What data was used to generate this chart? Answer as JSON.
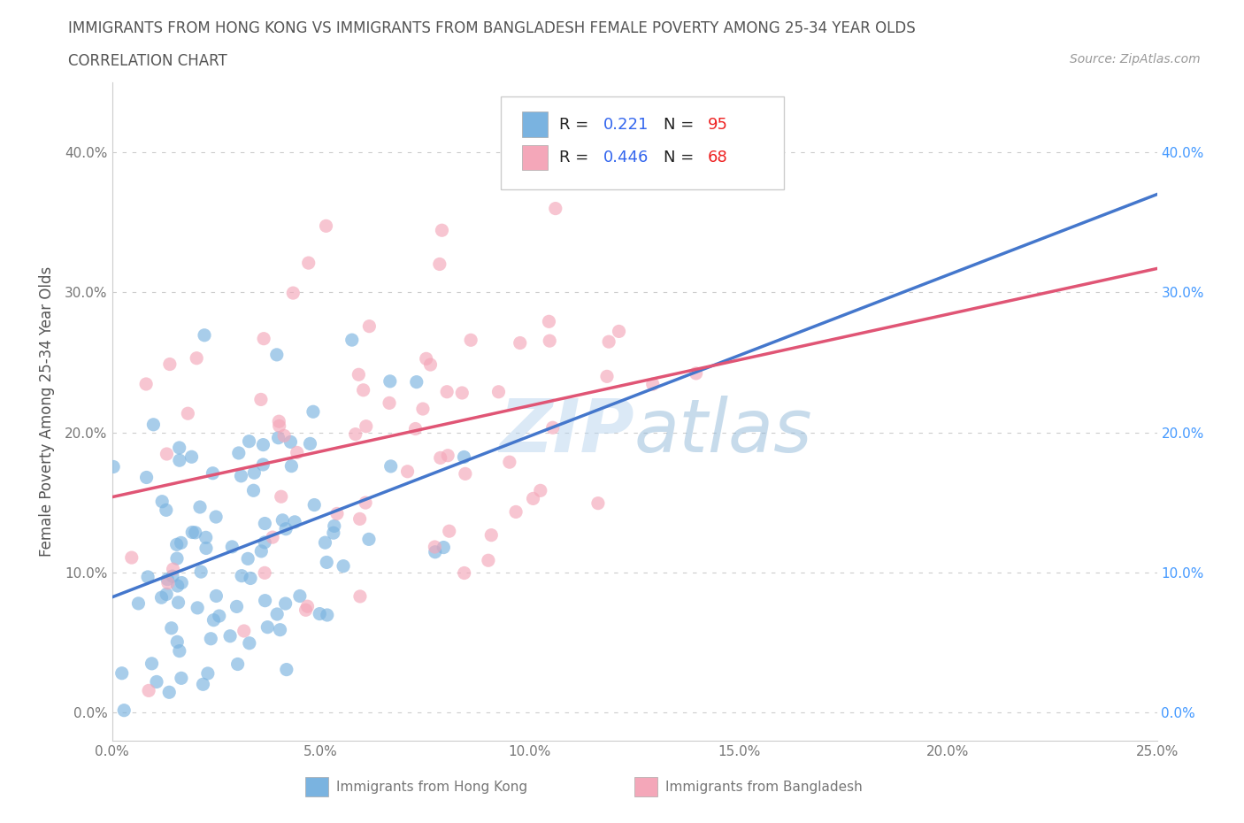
{
  "title_line1": "IMMIGRANTS FROM HONG KONG VS IMMIGRANTS FROM BANGLADESH FEMALE POVERTY AMONG 25-34 YEAR OLDS",
  "title_line2": "CORRELATION CHART",
  "source": "Source: ZipAtlas.com",
  "ylabel": "Female Poverty Among 25-34 Year Olds",
  "xlim": [
    0.0,
    0.25
  ],
  "ylim": [
    -0.02,
    0.45
  ],
  "yticks": [
    0.0,
    0.1,
    0.2,
    0.3,
    0.4
  ],
  "ytick_labels": [
    "0.0%",
    "10.0%",
    "20.0%",
    "30.0%",
    "40.0%"
  ],
  "xticks": [
    0.0,
    0.05,
    0.1,
    0.15,
    0.2,
    0.25
  ],
  "xtick_labels": [
    "0.0%",
    "5.0%",
    "10.0%",
    "15.0%",
    "20.0%",
    "25.0%"
  ],
  "hk_color": "#7ab3e0",
  "bd_color": "#f4a7b9",
  "hk_line_color": "#4477cc",
  "bd_line_color": "#e05575",
  "hk_R": 0.221,
  "hk_N": 95,
  "bd_R": 0.446,
  "bd_N": 68,
  "legend_label_hk": "Immigrants from Hong Kong",
  "legend_label_bd": "Immigrants from Bangladesh",
  "watermark": "ZIPatlas",
  "background_color": "#ffffff",
  "grid_color": "#cccccc",
  "title_color": "#555555",
  "axis_label_color": "#555555",
  "tick_color": "#777777",
  "right_tick_color": "#4499ff"
}
